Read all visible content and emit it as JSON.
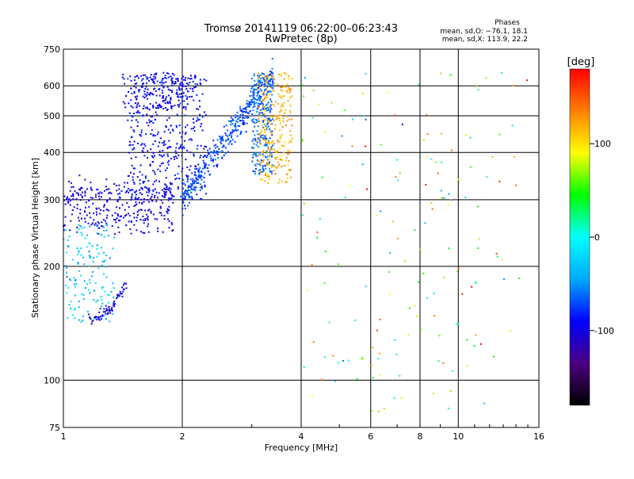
{
  "header": {
    "title_line1": "Tromsø 20141119 06:22:00–06:23:43",
    "title_line2": "RwPretec (8p)"
  },
  "stats": {
    "heading": "Phases",
    "line_o": "mean, sd,O: −76.1, 18.1",
    "line_x": "mean, sd,X: 113.9, 22.2"
  },
  "chart_data": {
    "type": "scatter",
    "title": "Tromsø 20141119 06:22:00–06:23:43",
    "subtitle": "RwPretec (8p)",
    "xlabel": "Frequency [MHz]",
    "ylabel": "Stationary phase Virtual Height [km]",
    "x_scale": "log",
    "y_scale": "log",
    "xlim": [
      1,
      16
    ],
    "ylim": [
      75,
      750
    ],
    "x_ticks": [
      1,
      2,
      4,
      6,
      8,
      10,
      16
    ],
    "x_tick_labels": [
      "1",
      "2",
      "4",
      "6",
      "8",
      "10",
      "16"
    ],
    "y_ticks": [
      75,
      100,
      200,
      300,
      400,
      500,
      600,
      750
    ],
    "y_tick_labels": [
      "75",
      "100",
      "200",
      "300",
      "400",
      "500",
      "600",
      "750"
    ],
    "grid": true,
    "colorbar": {
      "label": "[deg]",
      "range": [
        -180,
        180
      ],
      "ticks": [
        100,
        0,
        -100
      ],
      "tick_labels": [
        "100",
        "0",
        "-100"
      ],
      "colormap": [
        "#000000",
        "#4b0082",
        "#0000ff",
        "#00aaff",
        "#00ffff",
        "#00ff00",
        "#ffff00",
        "#ff8000",
        "#ff0000"
      ]
    },
    "clusters": [
      {
        "name": "o-trace-low",
        "phase": -100,
        "phase_sd": 15,
        "count": 320,
        "x": [
          1.0,
          1.9
        ],
        "y": [
          250,
          330
        ],
        "shape": "band"
      },
      {
        "name": "o-trace-mid",
        "phase": -90,
        "phase_sd": 18,
        "count": 420,
        "x": [
          1.45,
          2.3
        ],
        "y": [
          300,
          640
        ],
        "shape": "cloud"
      },
      {
        "name": "o-trace-rise",
        "phase": -70,
        "phase_sd": 15,
        "count": 380,
        "x": [
          2.0,
          3.4
        ],
        "y": [
          300,
          650
        ],
        "shape": "ramp"
      },
      {
        "name": "o-trace-top",
        "phase": -95,
        "phase_sd": 15,
        "count": 160,
        "x": [
          1.4,
          2.1
        ],
        "y": [
          520,
          650
        ],
        "shape": "cloud"
      },
      {
        "name": "o-trace-column",
        "phase": -60,
        "phase_sd": 15,
        "count": 260,
        "x": [
          3.0,
          3.4
        ],
        "y": [
          350,
          650
        ],
        "shape": "cloud"
      },
      {
        "name": "x-trace",
        "phase": 120,
        "phase_sd": 20,
        "count": 260,
        "x": [
          3.1,
          3.8
        ],
        "y": [
          330,
          650
        ],
        "shape": "cloud"
      },
      {
        "name": "low-scatter",
        "phase": -30,
        "phase_sd": 25,
        "count": 140,
        "x": [
          1.0,
          1.35
        ],
        "y": [
          140,
          260
        ],
        "shape": "cloud"
      },
      {
        "name": "low-cusp",
        "phase": -100,
        "phase_sd": 15,
        "count": 70,
        "x": [
          1.15,
          1.45
        ],
        "y": [
          145,
          180
        ],
        "shape": "cusp"
      },
      {
        "name": "scattered-echoes",
        "phase": 60,
        "phase_sd": 110,
        "count": 170,
        "x": [
          4.0,
          15.0
        ],
        "y": [
          80,
          650
        ],
        "shape": "random"
      }
    ]
  }
}
